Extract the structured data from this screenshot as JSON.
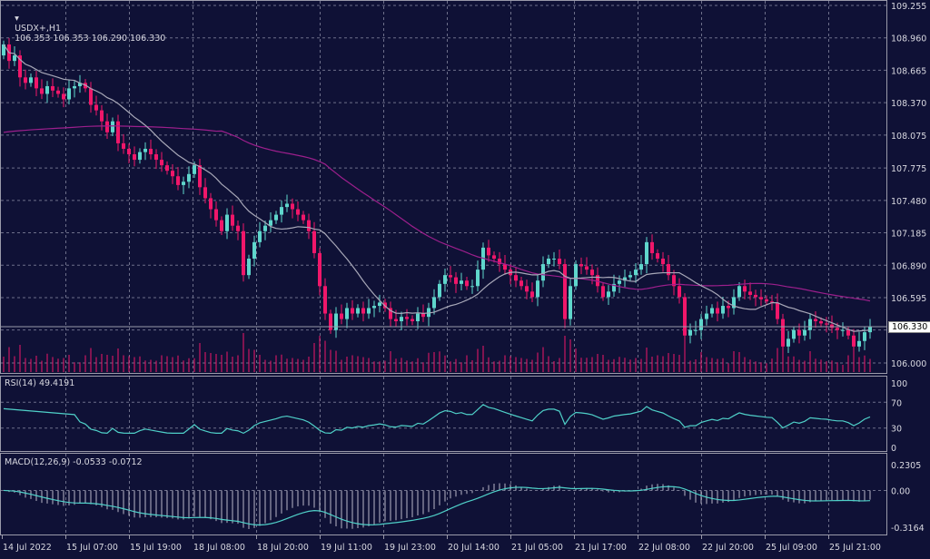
{
  "header": {
    "symbol": "USDX+,H1",
    "values": "106.353 106.353 106.290 106.330"
  },
  "current_price_label": "106.330",
  "rsi": {
    "label": "RSI(14) 49.4191",
    "ticks": [
      "100",
      "70",
      "30",
      "0"
    ]
  },
  "macd": {
    "label": "MACD(12,26,9) -0.0533 -0.0712",
    "ticks": [
      "0.2305",
      "0.00",
      "-0.3164"
    ]
  },
  "colors": {
    "background": "#0f1136",
    "bull": "#5fd6cc",
    "bear": "#f0176a",
    "fast_ma": "#a8a8b8",
    "slow_ma": "#9c1f8c",
    "rsi": "#4fd0c8",
    "macd": "#4fd0c8"
  },
  "chart_data": {
    "type": "candlestick",
    "timeframe": "H1",
    "ylim": [
      106.0,
      109.255
    ],
    "price_ticks": [
      "109.255",
      "108.960",
      "108.665",
      "108.370",
      "108.075",
      "107.775",
      "107.480",
      "107.185",
      "106.890",
      "106.595",
      "106.000"
    ],
    "time_labels": [
      "14 Jul 2022",
      "15 Jul 07:00",
      "15 Jul 19:00",
      "18 Jul 08:00",
      "18 Jul 20:00",
      "19 Jul 11:00",
      "19 Jul 23:00",
      "20 Jul 14:00",
      "21 Jul 05:00",
      "21 Jul 17:00",
      "22 Jul 08:00",
      "22 Jul 20:00",
      "25 Jul 09:00",
      "25 Jul 21:00"
    ],
    "first_open": 108.8,
    "closes": [
      108.9,
      108.75,
      108.8,
      108.6,
      108.55,
      108.6,
      108.5,
      108.45,
      108.52,
      108.48,
      108.45,
      108.4,
      108.5,
      108.52,
      108.55,
      108.5,
      108.35,
      108.3,
      108.2,
      108.1,
      108.2,
      108.0,
      107.95,
      107.9,
      107.85,
      107.92,
      107.95,
      107.9,
      107.85,
      107.8,
      107.75,
      107.7,
      107.62,
      107.65,
      107.72,
      107.8,
      107.6,
      107.5,
      107.4,
      107.3,
      107.2,
      107.35,
      107.25,
      107.2,
      106.8,
      106.95,
      107.1,
      107.2,
      107.25,
      107.3,
      107.35,
      107.42,
      107.45,
      107.4,
      107.35,
      107.3,
      107.2,
      107.0,
      106.7,
      106.45,
      106.3,
      106.45,
      106.4,
      106.5,
      106.45,
      106.5,
      106.45,
      106.5,
      106.52,
      106.55,
      106.5,
      106.4,
      106.38,
      106.42,
      106.4,
      106.38,
      106.45,
      106.42,
      106.5,
      106.6,
      106.72,
      106.8,
      106.78,
      106.72,
      106.75,
      106.7,
      106.7,
      106.85,
      107.05,
      106.98,
      106.95,
      106.9,
      106.85,
      106.8,
      106.75,
      106.7,
      106.65,
      106.6,
      106.75,
      106.9,
      106.95,
      106.95,
      106.9,
      106.4,
      106.7,
      106.9,
      106.88,
      106.85,
      106.8,
      106.7,
      106.6,
      106.65,
      106.72,
      106.75,
      106.78,
      106.8,
      106.85,
      106.9,
      107.1,
      107.0,
      106.95,
      106.9,
      106.8,
      106.7,
      106.6,
      106.25,
      106.3,
      106.3,
      106.4,
      106.45,
      106.5,
      106.45,
      106.52,
      106.5,
      106.6,
      106.7,
      106.65,
      106.62,
      106.6,
      106.58,
      106.56,
      106.55,
      106.4,
      106.15,
      106.22,
      106.3,
      106.25,
      106.3,
      106.4,
      106.38,
      106.36,
      106.35,
      106.32,
      106.3,
      106.3,
      106.25,
      106.15,
      106.2,
      106.28,
      106.33
    ],
    "rsi_range": [
      0,
      100
    ],
    "macd_range": [
      -0.3164,
      0.2305
    ],
    "grid": true
  }
}
